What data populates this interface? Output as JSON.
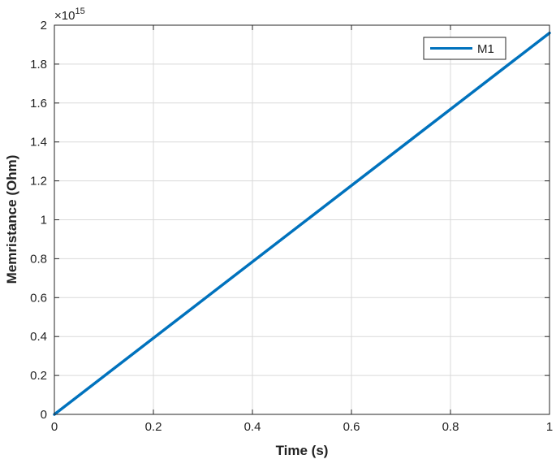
{
  "chart_data": {
    "type": "line",
    "xlabel": "Time (s)",
    "ylabel": "Memristance (Ohm)",
    "y_multiplier_label": "×10",
    "y_multiplier_exponent": "15",
    "xlim": [
      0,
      1
    ],
    "ylim": [
      0,
      2
    ],
    "x_ticks": [
      0,
      0.2,
      0.4,
      0.6,
      0.8,
      1
    ],
    "x_tick_labels": [
      "0",
      "0.2",
      "0.4",
      "0.6",
      "0.8",
      "1"
    ],
    "y_ticks": [
      0,
      0.2,
      0.4,
      0.6,
      0.8,
      1,
      1.2,
      1.4,
      1.6,
      1.8,
      2
    ],
    "y_tick_labels": [
      "0",
      "0.2",
      "0.4",
      "0.6",
      "0.8",
      "1",
      "1.2",
      "1.4",
      "1.6",
      "1.8",
      "2"
    ],
    "grid": true,
    "legend_position": "top-right",
    "series": [
      {
        "name": "M1",
        "color": "#0072BD",
        "x": [
          0,
          1
        ],
        "y": [
          0,
          1.96
        ]
      }
    ]
  }
}
